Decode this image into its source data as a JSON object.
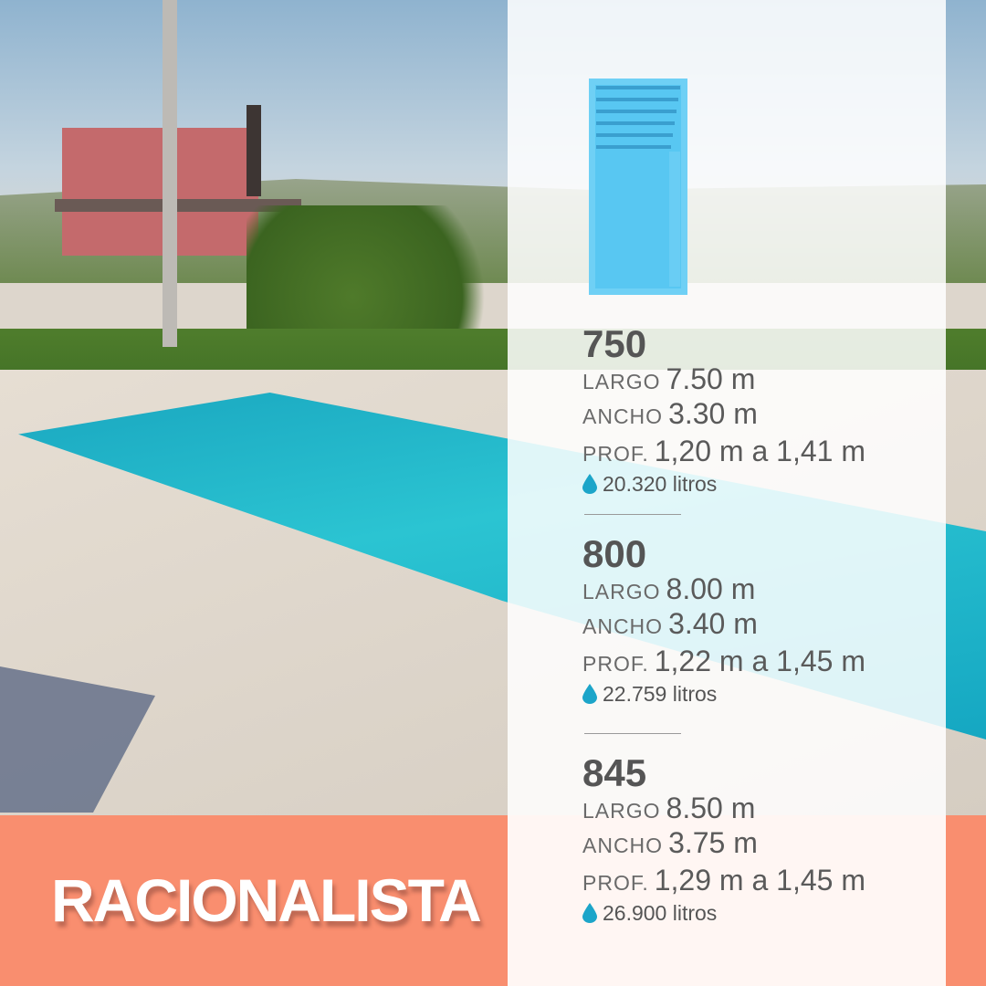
{
  "title": "RACIONALISTA",
  "colors": {
    "band": "#f98e6f",
    "pool_icon": "#5bc8f2",
    "drop": "#1ca5c9",
    "text": "#555555"
  },
  "models": [
    {
      "name": "750",
      "largo_label": "LARGO",
      "largo": "7.50 m",
      "ancho_label": "ANCHO",
      "ancho": "3.30 m",
      "prof_label": "PROF.",
      "prof": "1,20 m a 1,41 m",
      "volume": "20.320 litros",
      "volume_icon": "water-drop-icon"
    },
    {
      "name": "800",
      "largo_label": "LARGO",
      "largo": "8.00 m",
      "ancho_label": "ANCHO",
      "ancho": "3.40 m",
      "prof_label": "PROF.",
      "prof": "1,22 m a 1,45 m",
      "volume": "22.759 litros",
      "volume_icon": "water-drop-icon"
    },
    {
      "name": "845",
      "largo_label": "LARGO",
      "largo": "8.50 m",
      "ancho_label": "ANCHO",
      "ancho": "3.75 m",
      "prof_label": "PROF.",
      "prof": "1,29 m a 1,45 m",
      "volume": "26.900 litros",
      "volume_icon": "water-drop-icon"
    }
  ]
}
